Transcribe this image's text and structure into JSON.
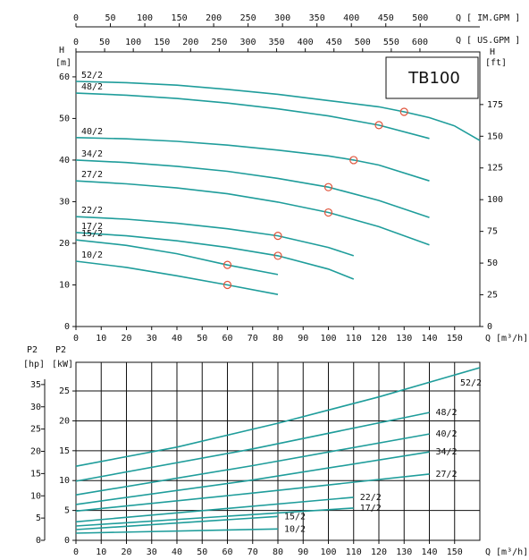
{
  "chart_data": [
    {
      "type": "line",
      "title": "TB100",
      "x_label": "Q [m³/h]",
      "xlim": [
        0,
        160
      ],
      "xticks": [
        0,
        10,
        20,
        30,
        40,
        50,
        60,
        70,
        80,
        90,
        100,
        110,
        120,
        130,
        140,
        150
      ],
      "y_label": "H",
      "y_unit": "[m]",
      "ylim": [
        0,
        66
      ],
      "yticks": [
        0,
        10,
        20,
        30,
        40,
        50,
        60
      ],
      "y2_label": "H",
      "y2_unit": "[ft]",
      "y2lim": [
        0,
        216.5
      ],
      "y2ticks": [
        0,
        25,
        50,
        75,
        100,
        125,
        150,
        175
      ],
      "im_gpm": {
        "label": "Q [ IM.GPM ]",
        "lim": [
          0,
          586.6
        ],
        "ticks": [
          0,
          50,
          100,
          150,
          200,
          250,
          300,
          350,
          400,
          450,
          500
        ]
      },
      "us_gpm": {
        "label": "Q [ US.GPM ]",
        "lim": [
          0,
          704.5
        ],
        "ticks": [
          0,
          50,
          100,
          150,
          200,
          250,
          300,
          350,
          400,
          450,
          500,
          550,
          600
        ]
      },
      "series": [
        {
          "name": "52/2",
          "color": "#1f9d9b",
          "x": [
            0,
            20,
            40,
            60,
            80,
            100,
            120,
            130,
            140,
            150,
            160
          ],
          "values": [
            58.9,
            58.6,
            58,
            57,
            55.8,
            54.3,
            52.8,
            51.6,
            50.2,
            48.2,
            44.7
          ]
        },
        {
          "name": "48/2",
          "color": "#1f9d9b",
          "x": [
            0,
            20,
            40,
            60,
            80,
            100,
            120,
            140
          ],
          "values": [
            56.1,
            55.6,
            54.8,
            53.7,
            52.3,
            50.6,
            48.4,
            45.2
          ]
        },
        {
          "name": "40/2",
          "color": "#1f9d9b",
          "x": [
            0,
            20,
            40,
            60,
            80,
            100,
            110,
            120,
            140
          ],
          "values": [
            45.4,
            45.1,
            44.5,
            43.6,
            42.4,
            41,
            40,
            38.8,
            35
          ]
        },
        {
          "name": "34/2",
          "color": "#1f9d9b",
          "x": [
            0,
            20,
            40,
            60,
            80,
            100,
            120,
            140
          ],
          "values": [
            40,
            39.4,
            38.5,
            37.3,
            35.6,
            33.5,
            30.3,
            26.2
          ]
        },
        {
          "name": "27/2",
          "color": "#1f9d9b",
          "x": [
            0,
            20,
            40,
            60,
            80,
            100,
            120,
            140
          ],
          "values": [
            35,
            34.3,
            33.3,
            31.9,
            29.9,
            27.4,
            24,
            19.6
          ]
        },
        {
          "name": "22/2",
          "color": "#1f9d9b",
          "x": [
            0,
            20,
            40,
            60,
            80,
            100,
            110
          ],
          "values": [
            26.4,
            25.8,
            24.8,
            23.5,
            21.8,
            19,
            17
          ]
        },
        {
          "name": "17/2",
          "color": "#1f9d9b",
          "x": [
            0,
            20,
            40,
            60,
            80,
            100,
            110
          ],
          "values": [
            22.6,
            21.8,
            20.6,
            19,
            17,
            13.8,
            11.4
          ]
        },
        {
          "name": "15/2",
          "color": "#1f9d9b",
          "x": [
            0,
            20,
            40,
            60,
            80
          ],
          "values": [
            20.8,
            19.5,
            17.5,
            14.8,
            12.5
          ]
        },
        {
          "name": "10/2",
          "color": "#1f9d9b",
          "x": [
            0,
            20,
            40,
            60,
            80
          ],
          "values": [
            15.7,
            14.2,
            12.2,
            10,
            7.7
          ]
        }
      ],
      "duty_points": {
        "color": "#e0533a",
        "x": [
          130,
          120,
          110,
          100,
          100,
          80,
          80,
          60,
          60
        ],
        "y": [
          51.6,
          48.4,
          40,
          33.5,
          27.4,
          21.8,
          17,
          14.8,
          10
        ]
      }
    },
    {
      "type": "line",
      "x_label": "Q [m³/h]",
      "grid": true,
      "xlim": [
        0,
        160
      ],
      "xticks": [
        0,
        10,
        20,
        30,
        40,
        50,
        60,
        70,
        80,
        90,
        100,
        110,
        120,
        130,
        140,
        150
      ],
      "y_label": "P2",
      "y_unit": "[kW]",
      "ylim": [
        0,
        29.8
      ],
      "yticks": [
        0,
        5,
        10,
        15,
        20,
        25
      ],
      "y2_label": "P2",
      "y2_unit": "[hp]",
      "y2lim": [
        0,
        40
      ],
      "y2ticks": [
        0,
        5,
        10,
        15,
        20,
        25,
        30,
        35
      ],
      "series": [
        {
          "name": "52/2",
          "color": "#1f9d9b",
          "x": [
            0,
            40,
            80,
            120,
            160
          ],
          "values": [
            12.4,
            15.6,
            19.6,
            24,
            28.9
          ]
        },
        {
          "name": "48/2",
          "color": "#1f9d9b",
          "x": [
            0,
            70,
            140
          ],
          "values": [
            9.9,
            15.3,
            21.4
          ]
        },
        {
          "name": "40/2",
          "color": "#1f9d9b",
          "x": [
            0,
            70,
            140
          ],
          "values": [
            7.6,
            12.5,
            17.8
          ]
        },
        {
          "name": "34/2",
          "color": "#1f9d9b",
          "x": [
            0,
            70,
            140
          ],
          "values": [
            6,
            10.1,
            14.8
          ]
        },
        {
          "name": "27/2",
          "color": "#1f9d9b",
          "x": [
            0,
            70,
            140
          ],
          "values": [
            4.9,
            7.9,
            11.1
          ]
        },
        {
          "name": "22/2",
          "color": "#1f9d9b",
          "x": [
            0,
            110
          ],
          "values": [
            3.1,
            7.2
          ]
        },
        {
          "name": "17/2",
          "color": "#1f9d9b",
          "x": [
            0,
            110
          ],
          "values": [
            2.4,
            5.4
          ]
        },
        {
          "name": "15/2",
          "color": "#1f9d9b",
          "x": [
            0,
            80
          ],
          "values": [
            1.8,
            4
          ]
        },
        {
          "name": "10/2",
          "color": "#1f9d9b",
          "x": [
            0,
            80
          ],
          "values": [
            1.2,
            1.9
          ]
        }
      ]
    }
  ]
}
